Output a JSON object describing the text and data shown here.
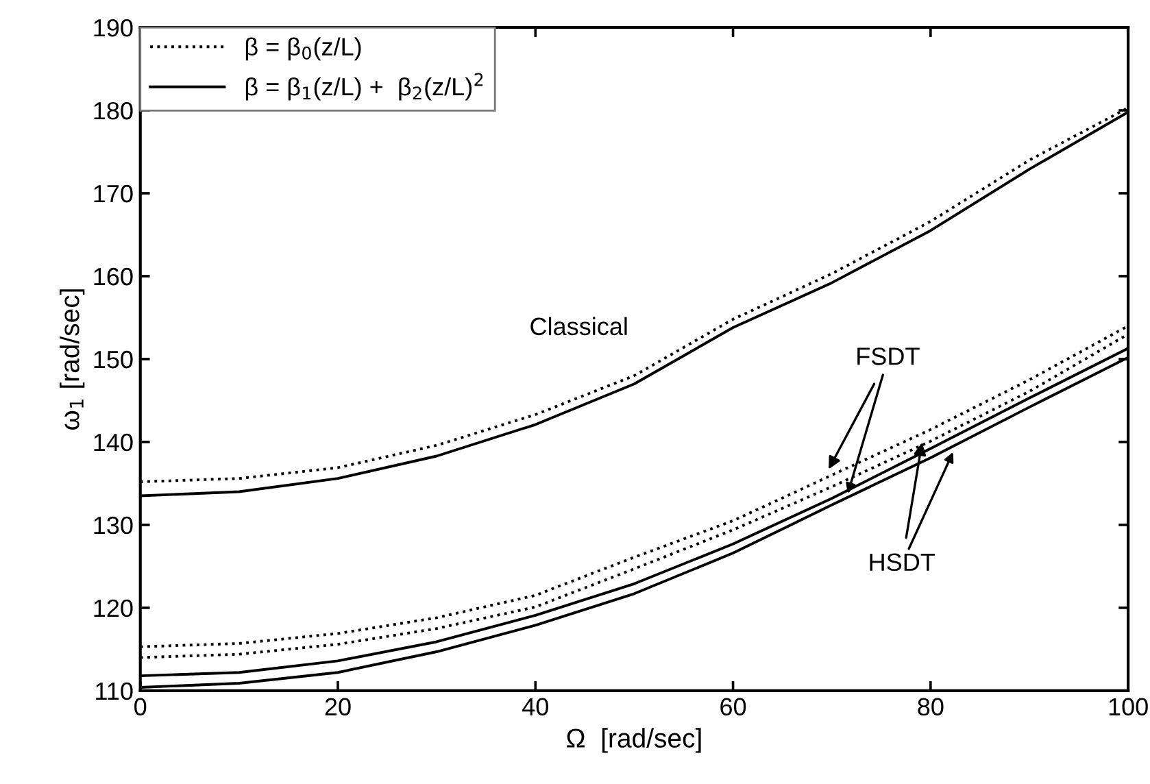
{
  "chart_data": {
    "type": "line",
    "xlabel": "Ω  [rad/sec]",
    "ylabel": "ω$_{1}$ [rad/sec]",
    "x": [
      0,
      10,
      20,
      30,
      40,
      50,
      60,
      70,
      80,
      90,
      100
    ],
    "series": [
      {
        "name": "β = β$_{0}$(z/L)",
        "color": "#000000",
        "line_style": "dotted",
        "values": [
          135.2,
          135.6,
          136.9,
          139.6,
          143.3,
          148.0,
          154.8,
          160.3,
          166.6,
          174.0,
          180.3
        ]
      },
      {
        "name": "β = β$_{1}$(z/L) +  β$_{2}$(z/L)$^{2}$",
        "color": "#000000",
        "line_style": "solid",
        "values": [
          133.5,
          134.0,
          135.6,
          138.3,
          142.1,
          147.0,
          153.8,
          159.2,
          165.5,
          172.9,
          179.8
        ]
      },
      {
        "color": "#000000",
        "line_style": "dotted",
        "values": [
          115.3,
          115.7,
          116.9,
          118.8,
          121.5,
          126.1,
          130.5,
          136.0,
          141.5,
          147.5,
          154.0
        ]
      },
      {
        "color": "#000000",
        "line_style": "dotted",
        "values": [
          114.0,
          114.4,
          115.6,
          117.5,
          120.1,
          124.7,
          129.4,
          134.6,
          140.1,
          146.1,
          153.0
        ]
      },
      {
        "color": "#000000",
        "line_style": "solid",
        "values": [
          111.8,
          112.2,
          113.6,
          115.9,
          119.1,
          122.9,
          127.7,
          133.2,
          139.2,
          145.3,
          151.3
        ]
      },
      {
        "color": "#000000",
        "line_style": "solid",
        "values": [
          110.4,
          110.9,
          112.2,
          114.7,
          117.9,
          121.7,
          126.6,
          132.4,
          138.1,
          144.2,
          150.2
        ]
      }
    ],
    "xlim": [
      0,
      100
    ],
    "xticks": [
      0,
      20,
      40,
      60,
      80,
      100
    ],
    "ylim": [
      110,
      190
    ],
    "yticks": [
      110,
      120,
      130,
      140,
      150,
      160,
      170,
      180,
      190
    ],
    "grid": false,
    "legend": "top left",
    "annotations": [
      "Classical",
      {
        "text": "FSDT",
        "x": 69.5,
        "y": 136.3
      },
      {
        "text": "HSDT",
        "x": 79.2,
        "y": 140.4
      }
    ]
  }
}
